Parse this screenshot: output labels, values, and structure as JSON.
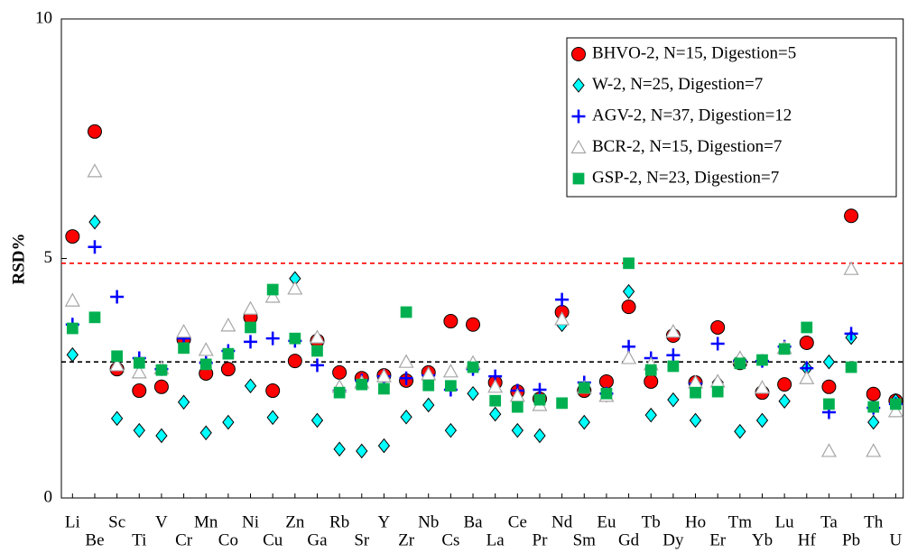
{
  "chart_data": {
    "type": "scatter",
    "ylabel": "RSD%",
    "ylim": [
      0,
      10
    ],
    "yticks": [
      0,
      5,
      10
    ],
    "categories": [
      "Li",
      "Be",
      "Sc",
      "Ti",
      "V",
      "Cr",
      "Mn",
      "Co",
      "Ni",
      "Cu",
      "Zn",
      "Ga",
      "Rb",
      "Sr",
      "Y",
      "Zr",
      "Nb",
      "Cs",
      "Ba",
      "La",
      "Ce",
      "Pr",
      "Nd",
      "Sm",
      "Eu",
      "Gd",
      "Tb",
      "Dy",
      "Ho",
      "Er",
      "Tm",
      "Yb",
      "Lu",
      "Hf",
      "Ta",
      "Pb",
      "Th",
      "U"
    ],
    "reference_lines": [
      {
        "value": 4.9,
        "color": "#ff0000"
      },
      {
        "value": 2.84,
        "color": "#000000"
      }
    ],
    "legend": "upper right",
    "series": [
      {
        "name": "BHVO-2, N=15, Digestion=5",
        "color": "#ff0000",
        "marker": "circle",
        "values": [
          5.46,
          7.65,
          2.69,
          2.24,
          2.32,
          3.31,
          2.6,
          2.69,
          3.77,
          2.24,
          2.86,
          3.28,
          2.62,
          2.5,
          2.56,
          2.45,
          2.62,
          3.69,
          3.62,
          2.41,
          2.22,
          2.07,
          3.88,
          2.24,
          2.43,
          3.99,
          2.43,
          3.39,
          2.41,
          3.56,
          2.82,
          2.2,
          2.37,
          3.24,
          2.32,
          5.89,
          2.17,
          2.03
        ]
      },
      {
        "name": "W-2, N=25, Digestion=7",
        "color": "#00ffff",
        "marker": "diamond",
        "values": [
          2.99,
          5.76,
          1.66,
          1.41,
          1.3,
          2.0,
          1.36,
          1.58,
          2.34,
          1.68,
          4.58,
          1.62,
          1.02,
          0.98,
          1.09,
          1.69,
          1.94,
          1.41,
          2.18,
          1.75,
          1.41,
          1.3,
          3.62,
          1.58,
          2.15,
          4.31,
          1.73,
          2.05,
          1.62,
          2.41,
          1.39,
          1.62,
          2.02,
          2.71,
          2.84,
          3.35,
          1.58,
          2.03
        ]
      },
      {
        "name": "AGV-2, N=37, Digestion=12",
        "color": "#0000ff",
        "marker": "plus",
        "values": [
          3.62,
          5.24,
          4.2,
          2.92,
          2.69,
          3.33,
          2.82,
          3.07,
          3.26,
          3.33,
          3.28,
          2.77,
          2.24,
          2.45,
          2.54,
          2.5,
          2.56,
          2.26,
          2.69,
          2.54,
          2.24,
          2.26,
          4.14,
          2.41,
          2.18,
          3.16,
          2.92,
          2.98,
          2.39,
          3.22,
          2.86,
          2.86,
          3.16,
          2.71,
          1.79,
          3.43,
          1.88,
          1.96
        ]
      },
      {
        "name": "BCR-2, N=15, Digestion=7",
        "color": "#a6a6a6",
        "marker": "triangle",
        "values": [
          4.12,
          6.82,
          2.77,
          2.62,
          2.71,
          3.47,
          3.09,
          3.6,
          3.95,
          4.2,
          4.37,
          3.35,
          2.32,
          2.41,
          2.54,
          2.84,
          2.58,
          2.64,
          2.82,
          2.32,
          2.13,
          1.94,
          3.73,
          2.3,
          2.13,
          2.92,
          2.79,
          3.47,
          2.41,
          2.43,
          2.92,
          2.3,
          3.13,
          2.5,
          0.98,
          4.78,
          0.98,
          1.81
        ]
      },
      {
        "name": "GSP-2, N=23, Digestion=7",
        "color": "#00b050",
        "marker": "square",
        "values": [
          3.54,
          3.77,
          2.96,
          2.82,
          2.67,
          3.13,
          2.79,
          3.01,
          3.56,
          4.35,
          3.33,
          3.07,
          2.2,
          2.37,
          2.28,
          3.88,
          2.35,
          2.34,
          2.73,
          2.03,
          1.9,
          2.05,
          1.98,
          2.3,
          2.18,
          4.9,
          2.67,
          2.75,
          2.2,
          2.22,
          2.81,
          2.88,
          3.11,
          3.56,
          1.96,
          2.73,
          1.9,
          1.96
        ]
      }
    ]
  }
}
